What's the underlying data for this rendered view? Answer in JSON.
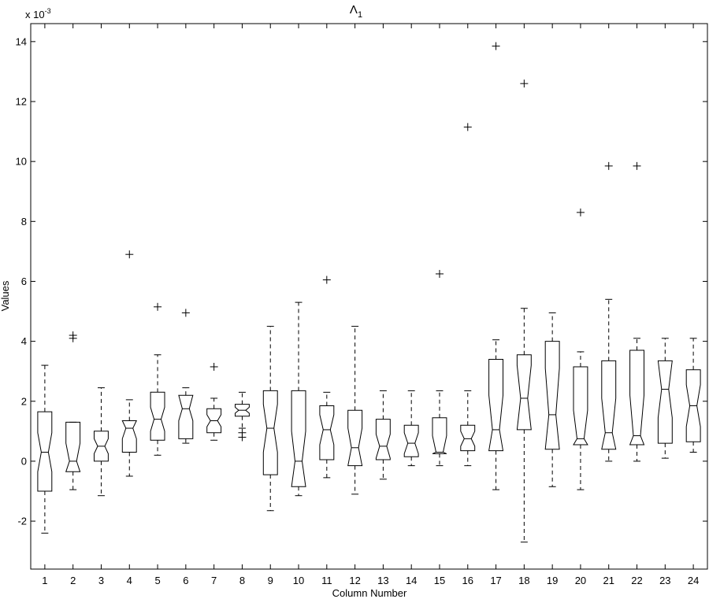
{
  "chart_data": {
    "type": "boxplot",
    "title": "Λ",
    "title_subscript": "1",
    "xlabel": "Column Number",
    "ylabel": "Values",
    "y_multiplier_label": "x 10",
    "y_multiplier_exponent": "-3",
    "ylim": [
      -3.6,
      14.6
    ],
    "xlim": [
      0.5,
      24.5
    ],
    "y_ticks": [
      -2,
      0,
      2,
      4,
      6,
      8,
      10,
      12,
      14
    ],
    "categories": [
      "1",
      "2",
      "3",
      "4",
      "5",
      "6",
      "7",
      "8",
      "9",
      "10",
      "11",
      "12",
      "13",
      "14",
      "15",
      "16",
      "17",
      "18",
      "19",
      "20",
      "21",
      "22",
      "23",
      "24"
    ],
    "notched": true,
    "grid": false,
    "boxes": [
      {
        "q1": -1.0,
        "median": 0.3,
        "q3": 1.65,
        "notch_low": -0.35,
        "notch_high": 0.95,
        "whisker_low": -2.4,
        "whisker_high": 3.2,
        "outliers": []
      },
      {
        "q1": -0.35,
        "median": 0.0,
        "q3": 1.3,
        "notch_low": -0.35,
        "notch_high": 0.6,
        "whisker_low": -0.95,
        "whisker_high": 1.3,
        "outliers": [
          4.2,
          4.1
        ]
      },
      {
        "q1": 0.0,
        "median": 0.5,
        "q3": 1.0,
        "notch_low": 0.25,
        "notch_high": 0.75,
        "whisker_low": -1.15,
        "whisker_high": 2.45,
        "outliers": []
      },
      {
        "q1": 0.3,
        "median": 1.1,
        "q3": 1.35,
        "notch_low": 0.75,
        "notch_high": 1.35,
        "whisker_low": -0.5,
        "whisker_high": 2.05,
        "outliers": [
          6.9
        ]
      },
      {
        "q1": 0.7,
        "median": 1.4,
        "q3": 2.3,
        "notch_low": 1.0,
        "notch_high": 1.8,
        "whisker_low": 0.2,
        "whisker_high": 3.55,
        "outliers": [
          5.15
        ]
      },
      {
        "q1": 0.75,
        "median": 1.75,
        "q3": 2.2,
        "notch_low": 1.35,
        "notch_high": 2.2,
        "whisker_low": 0.6,
        "whisker_high": 2.45,
        "outliers": [
          4.95
        ]
      },
      {
        "q1": 0.95,
        "median": 1.35,
        "q3": 1.75,
        "notch_low": 1.15,
        "notch_high": 1.55,
        "whisker_low": 0.7,
        "whisker_high": 2.1,
        "outliers": [
          3.15
        ]
      },
      {
        "q1": 1.5,
        "median": 1.7,
        "q3": 1.9,
        "notch_low": 1.6,
        "notch_high": 1.8,
        "whisker_low": 1.1,
        "whisker_high": 2.3,
        "outliers": [
          0.95,
          0.8
        ]
      },
      {
        "q1": -0.45,
        "median": 1.1,
        "q3": 2.35,
        "notch_low": 0.3,
        "notch_high": 1.9,
        "whisker_low": -1.65,
        "whisker_high": 4.5,
        "outliers": []
      },
      {
        "q1": -0.85,
        "median": 0.0,
        "q3": 2.35,
        "notch_low": -0.85,
        "notch_high": 1.0,
        "whisker_low": -1.15,
        "whisker_high": 5.3,
        "outliers": []
      },
      {
        "q1": 0.05,
        "median": 1.05,
        "q3": 1.85,
        "notch_low": 0.55,
        "notch_high": 1.55,
        "whisker_low": -0.55,
        "whisker_high": 2.3,
        "outliers": [
          6.05
        ]
      },
      {
        "q1": -0.15,
        "median": 0.45,
        "q3": 1.7,
        "notch_low": -0.15,
        "notch_high": 1.1,
        "whisker_low": -1.1,
        "whisker_high": 4.5,
        "outliers": []
      },
      {
        "q1": 0.05,
        "median": 0.5,
        "q3": 1.4,
        "notch_low": 0.1,
        "notch_high": 0.9,
        "whisker_low": -0.6,
        "whisker_high": 2.35,
        "outliers": []
      },
      {
        "q1": 0.15,
        "median": 0.6,
        "q3": 1.2,
        "notch_low": 0.25,
        "notch_high": 0.95,
        "whisker_low": -0.15,
        "whisker_high": 2.35,
        "outliers": []
      },
      {
        "q1": 0.25,
        "median": 0.3,
        "q3": 1.45,
        "notch_low": 0.25,
        "notch_high": 0.85,
        "whisker_low": -0.15,
        "whisker_high": 2.35,
        "outliers": [
          6.25
        ]
      },
      {
        "q1": 0.35,
        "median": 0.75,
        "q3": 1.2,
        "notch_low": 0.5,
        "notch_high": 1.0,
        "whisker_low": -0.15,
        "whisker_high": 2.35,
        "outliers": [
          11.15
        ]
      },
      {
        "q1": 0.35,
        "median": 1.05,
        "q3": 3.4,
        "notch_low": 0.35,
        "notch_high": 2.2,
        "whisker_low": -0.95,
        "whisker_high": 4.05,
        "outliers": [
          13.85
        ]
      },
      {
        "q1": 1.05,
        "median": 2.1,
        "q3": 3.55,
        "notch_low": 1.05,
        "notch_high": 3.2,
        "whisker_low": -2.7,
        "whisker_high": 5.1,
        "outliers": [
          12.6
        ]
      },
      {
        "q1": 0.4,
        "median": 1.55,
        "q3": 4.0,
        "notch_low": 0.4,
        "notch_high": 3.1,
        "whisker_low": -0.85,
        "whisker_high": 4.95,
        "outliers": []
      },
      {
        "q1": 0.55,
        "median": 0.75,
        "q3": 3.15,
        "notch_low": 0.55,
        "notch_high": 1.7,
        "whisker_low": -0.95,
        "whisker_high": 3.65,
        "outliers": [
          8.3
        ]
      },
      {
        "q1": 0.4,
        "median": 0.95,
        "q3": 3.35,
        "notch_low": 0.4,
        "notch_high": 2.1,
        "whisker_low": 0.0,
        "whisker_high": 5.4,
        "outliers": [
          9.85
        ]
      },
      {
        "q1": 0.55,
        "median": 0.85,
        "q3": 3.7,
        "notch_low": 0.55,
        "notch_high": 2.2,
        "whisker_low": 0.0,
        "whisker_high": 4.1,
        "outliers": [
          9.85
        ]
      },
      {
        "q1": 0.6,
        "median": 2.4,
        "q3": 3.35,
        "notch_low": 1.45,
        "notch_high": 3.35,
        "whisker_low": 0.1,
        "whisker_high": 4.1,
        "outliers": []
      },
      {
        "q1": 0.65,
        "median": 1.85,
        "q3": 3.05,
        "notch_low": 1.15,
        "notch_high": 2.55,
        "whisker_low": 0.3,
        "whisker_high": 4.1,
        "outliers": []
      }
    ]
  }
}
